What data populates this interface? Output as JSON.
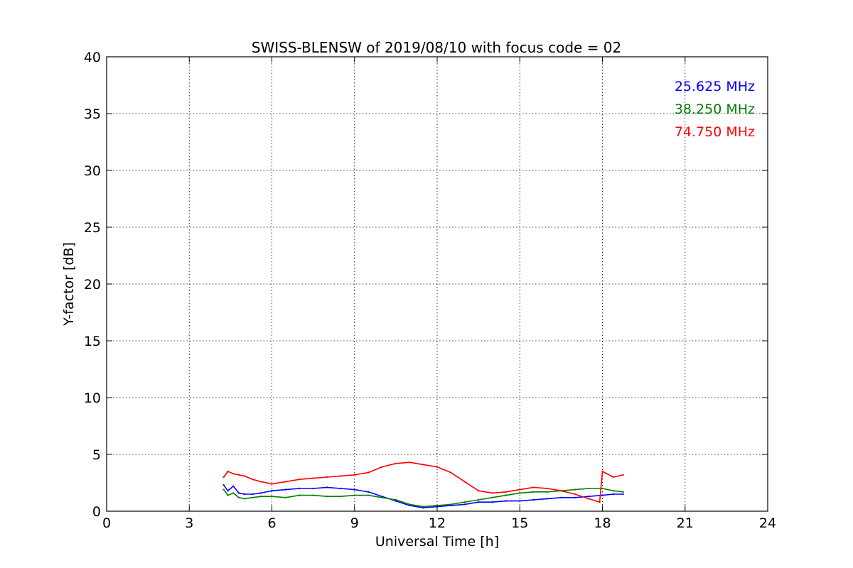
{
  "chart_data": {
    "type": "line",
    "title": "SWISS-BLENSW of 2019/08/10 with focus code = 02",
    "xlabel": "Universal Time [h]",
    "ylabel": "Y-factor [dB]",
    "xlim": [
      0,
      24
    ],
    "ylim": [
      0,
      40
    ],
    "xticks": [
      0,
      3,
      6,
      9,
      12,
      15,
      18,
      21,
      24
    ],
    "yticks": [
      0,
      5,
      10,
      15,
      20,
      25,
      30,
      35,
      40
    ],
    "grid": true,
    "legend_position": "top-right",
    "series": [
      {
        "name": "25.625 MHz",
        "color": "#0000ff",
        "x": [
          4.25,
          4.4,
          4.6,
          4.8,
          5.0,
          5.3,
          5.6,
          6.0,
          6.5,
          7.0,
          7.5,
          8.0,
          8.5,
          9.0,
          9.5,
          10.0,
          10.5,
          11.0,
          11.5,
          12.0,
          12.5,
          13.0,
          13.5,
          14.0,
          14.5,
          15.0,
          15.5,
          16.0,
          16.5,
          17.0,
          17.5,
          18.0,
          18.4,
          18.75
        ],
        "y": [
          2.3,
          1.8,
          2.2,
          1.6,
          1.5,
          1.5,
          1.6,
          1.8,
          1.9,
          2.0,
          2.0,
          2.1,
          2.0,
          1.9,
          1.7,
          1.3,
          0.9,
          0.5,
          0.3,
          0.4,
          0.5,
          0.6,
          0.8,
          0.8,
          0.9,
          0.9,
          1.0,
          1.1,
          1.2,
          1.2,
          1.3,
          1.4,
          1.5,
          1.5
        ]
      },
      {
        "name": "38.250 MHz",
        "color": "#008000",
        "x": [
          4.25,
          4.4,
          4.6,
          4.8,
          5.0,
          5.3,
          5.6,
          6.0,
          6.5,
          7.0,
          7.5,
          8.0,
          8.5,
          9.0,
          9.5,
          10.0,
          10.5,
          11.0,
          11.5,
          12.0,
          12.5,
          13.0,
          13.5,
          14.0,
          14.5,
          15.0,
          15.5,
          16.0,
          16.5,
          17.0,
          17.5,
          18.0,
          18.4,
          18.75
        ],
        "y": [
          1.9,
          1.4,
          1.6,
          1.2,
          1.1,
          1.2,
          1.3,
          1.3,
          1.2,
          1.4,
          1.4,
          1.3,
          1.3,
          1.4,
          1.4,
          1.2,
          1.0,
          0.6,
          0.4,
          0.5,
          0.6,
          0.8,
          1.0,
          1.2,
          1.4,
          1.6,
          1.7,
          1.7,
          1.8,
          1.9,
          2.0,
          2.0,
          1.8,
          1.7
        ]
      },
      {
        "name": "74.750 MHz",
        "color": "#ff0000",
        "x": [
          4.25,
          4.4,
          4.6,
          4.8,
          5.0,
          5.3,
          5.6,
          6.0,
          6.5,
          7.0,
          7.5,
          8.0,
          8.5,
          9.0,
          9.5,
          10.0,
          10.5,
          11.0,
          11.5,
          12.0,
          12.5,
          13.0,
          13.5,
          14.0,
          14.5,
          15.0,
          15.5,
          16.0,
          16.5,
          17.0,
          17.5,
          17.9,
          18.0,
          18.4,
          18.75
        ],
        "y": [
          3.0,
          3.5,
          3.3,
          3.2,
          3.1,
          2.8,
          2.6,
          2.4,
          2.6,
          2.8,
          2.9,
          3.0,
          3.1,
          3.2,
          3.4,
          3.9,
          4.2,
          4.3,
          4.1,
          3.9,
          3.4,
          2.6,
          1.8,
          1.6,
          1.7,
          1.9,
          2.1,
          2.0,
          1.8,
          1.5,
          1.1,
          0.8,
          3.5,
          3.0,
          3.2
        ]
      }
    ]
  }
}
